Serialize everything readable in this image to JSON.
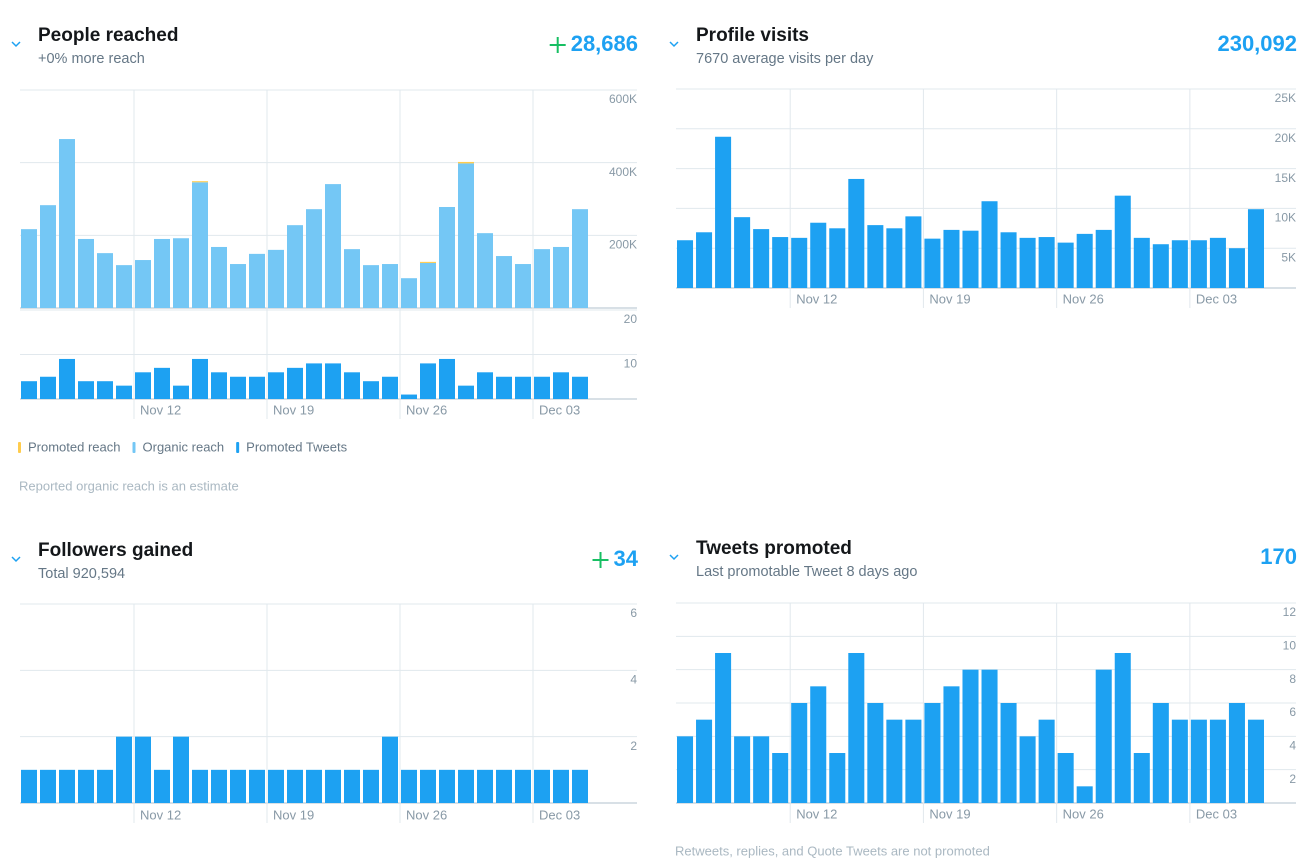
{
  "chart_data": [
    {
      "type": "bar",
      "title": "People reached",
      "subtitle": "+0% more reach",
      "total": "28,686",
      "categories": [
        null,
        null,
        null,
        null,
        null,
        null,
        "Nov 12",
        null,
        null,
        null,
        null,
        null,
        null,
        "Nov 19",
        null,
        null,
        null,
        null,
        null,
        null,
        "Nov 26",
        null,
        null,
        null,
        null,
        null,
        null,
        "Dec 03",
        null,
        null
      ],
      "series": [
        {
          "name": "Organic reach",
          "color": "#74c7f5",
          "values": [
            217000,
            283000,
            465000,
            190000,
            151000,
            118000,
            132000,
            190000,
            192000,
            346000,
            168000,
            121000,
            149000,
            160000,
            228000,
            272000,
            341000,
            162000,
            118000,
            121000,
            82000,
            124000,
            278000,
            398000,
            206000,
            143000,
            121000,
            162000,
            168000,
            272000
          ]
        },
        {
          "name": "Promoted reach",
          "color": "#ffcc4d",
          "values": [
            0,
            0,
            0,
            0,
            0,
            0,
            0,
            0,
            0,
            3000,
            0,
            0,
            0,
            0,
            0,
            0,
            0,
            0,
            0,
            0,
            0,
            3000,
            0,
            4000,
            0,
            0,
            0,
            0,
            0,
            0
          ]
        },
        {
          "name": "Promoted Tweets",
          "color": "#1da1f2",
          "axis": "y2",
          "values": [
            4,
            5,
            9,
            4,
            4,
            3,
            6,
            7,
            3,
            9,
            6,
            5,
            5,
            6,
            7,
            8,
            8,
            6,
            4,
            5,
            1,
            8,
            9,
            3,
            6,
            5,
            5,
            5,
            6,
            5
          ]
        }
      ],
      "legend_order": [
        "Promoted reach",
        "Organic reach",
        "Promoted Tweets"
      ],
      "ylim": [
        0,
        600000
      ],
      "yticks": [
        {
          "value": 200000,
          "label": "200K"
        },
        {
          "value": 400000,
          "label": "400K"
        },
        {
          "value": 600000,
          "label": "600K"
        }
      ],
      "y2lim": [
        0,
        20
      ],
      "y2ticks": [
        10,
        20
      ],
      "grid": true,
      "legend": true,
      "note": "Reported organic reach is an estimate"
    },
    {
      "type": "bar",
      "title": "Profile visits",
      "subtitle": "7670 average visits per day",
      "total": "230,092",
      "categories": [
        null,
        null,
        null,
        null,
        null,
        null,
        "Nov 12",
        null,
        null,
        null,
        null,
        null,
        null,
        "Nov 19",
        null,
        null,
        null,
        null,
        null,
        null,
        "Nov 26",
        null,
        null,
        null,
        null,
        null,
        null,
        "Dec 03",
        null,
        null,
        null
      ],
      "series": [
        {
          "name": "Profile visits",
          "color": "#1da1f2",
          "values": [
            6000,
            7000,
            19000,
            8900,
            7400,
            6400,
            6300,
            8200,
            7500,
            13700,
            7900,
            7500,
            9000,
            6200,
            7300,
            7200,
            10900,
            7000,
            6300,
            6400,
            5700,
            6800,
            7300,
            11600,
            6300,
            5500,
            6000,
            6000,
            6300,
            5000,
            9900
          ]
        }
      ],
      "ylim": [
        0,
        25000
      ],
      "yticks": [
        {
          "value": 5000,
          "label": "5K"
        },
        {
          "value": 10000,
          "label": "10K"
        },
        {
          "value": 15000,
          "label": "15K"
        },
        {
          "value": 20000,
          "label": "20K"
        },
        {
          "value": 25000,
          "label": "25K"
        }
      ],
      "grid": true
    },
    {
      "type": "bar",
      "title": "Followers gained",
      "subtitle": "Total 920,594",
      "total": "34",
      "categories": [
        null,
        null,
        null,
        null,
        null,
        null,
        "Nov 12",
        null,
        null,
        null,
        null,
        null,
        null,
        "Nov 19",
        null,
        null,
        null,
        null,
        null,
        null,
        "Nov 26",
        null,
        null,
        null,
        null,
        null,
        null,
        "Dec 03",
        null,
        null
      ],
      "series": [
        {
          "name": "Followers gained",
          "color": "#1da1f2",
          "values": [
            1,
            1,
            1,
            1,
            1,
            2,
            2,
            1,
            2,
            1,
            1,
            1,
            1,
            1,
            1,
            1,
            1,
            1,
            1,
            2,
            1,
            1,
            1,
            1,
            1,
            1,
            1,
            1,
            1,
            1
          ]
        }
      ],
      "ylim": [
        0,
        6
      ],
      "yticks": [
        2,
        4,
        6
      ],
      "grid": true
    },
    {
      "type": "bar",
      "title": "Tweets promoted",
      "subtitle": "Last promotable Tweet 8 days ago",
      "total": "170",
      "categories": [
        null,
        null,
        null,
        null,
        null,
        null,
        "Nov 12",
        null,
        null,
        null,
        null,
        null,
        null,
        "Nov 19",
        null,
        null,
        null,
        null,
        null,
        null,
        "Nov 26",
        null,
        null,
        null,
        null,
        null,
        null,
        "Dec 03",
        null,
        null,
        null
      ],
      "series": [
        {
          "name": "Tweets promoted",
          "color": "#1da1f2",
          "values": [
            4,
            5,
            9,
            4,
            4,
            3,
            6,
            7,
            3,
            9,
            6,
            5,
            5,
            6,
            7,
            8,
            8,
            6,
            4,
            5,
            3,
            1,
            8,
            9,
            3,
            6,
            5,
            5,
            5,
            6,
            5
          ]
        }
      ],
      "ylim": [
        0,
        12
      ],
      "yticks": [
        2,
        4,
        6,
        8,
        10,
        12
      ],
      "grid": true,
      "note": "Retweets, replies, and Quote Tweets are not promoted"
    }
  ]
}
